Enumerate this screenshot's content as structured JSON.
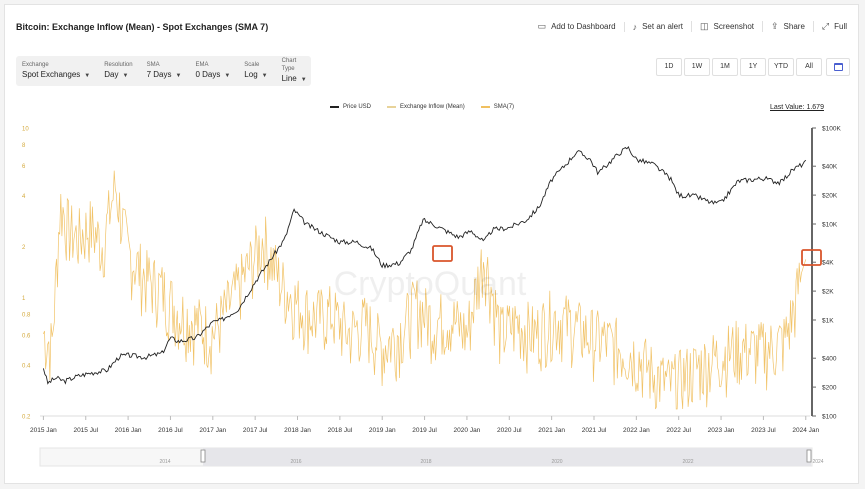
{
  "header": {
    "title": "Bitcoin: Exchange Inflow (Mean) - Spot Exchanges (SMA 7)",
    "actions": [
      {
        "label": "Add to Dashboard",
        "icon": "dashboard-icon"
      },
      {
        "label": "Set an alert",
        "icon": "bell-icon"
      },
      {
        "label": "Screenshot",
        "icon": "camera-icon"
      },
      {
        "label": "Share",
        "icon": "share-icon"
      },
      {
        "label": "Full",
        "icon": "fullscreen-icon"
      }
    ]
  },
  "controls": [
    {
      "label": "Exchange",
      "value": "Spot Exchanges"
    },
    {
      "label": "Resolution",
      "value": "Day"
    },
    {
      "label": "SMA",
      "value": "7 Days"
    },
    {
      "label": "EMA",
      "value": "0 Days"
    },
    {
      "label": "Scale",
      "value": "Log"
    },
    {
      "label": "Chart Type",
      "value": "Line"
    }
  ],
  "ranges": [
    "1D",
    "1W",
    "1M",
    "1Y",
    "YTD",
    "All"
  ],
  "legend": [
    {
      "name": "Price USD",
      "color": "#222222"
    },
    {
      "name": "Exchange Inflow (Mean)",
      "color": "#e8d39a"
    },
    {
      "name": "SMA(7)",
      "color": "#f0c060"
    }
  ],
  "last_value_label": "Last Value: 1.679",
  "navigator": {
    "labels": [
      "2014",
      "2016",
      "2018",
      "2020",
      "2022",
      "2024"
    ]
  },
  "chart_data": {
    "type": "line",
    "scale": "log",
    "x_ticks": [
      "2015 Jan",
      "2015 Jul",
      "2016 Jan",
      "2016 Jul",
      "2017 Jan",
      "2017 Jul",
      "2018 Jan",
      "2018 Jul",
      "2019 Jan",
      "2019 Jul",
      "2020 Jan",
      "2020 Jul",
      "2021 Jan",
      "2021 Jul",
      "2022 Jan",
      "2022 Jul",
      "2023 Jan",
      "2023 Jul",
      "2024 Jan"
    ],
    "x_range": [
      2014.96,
      2024.05
    ],
    "left_axis": {
      "ticks": [
        10,
        8,
        6,
        4,
        2,
        1,
        0.8,
        0.6,
        0.4,
        0.2
      ],
      "range": [
        0.2,
        10
      ]
    },
    "right_axis": {
      "ticks": [
        "$100K",
        "$40K",
        "$20K",
        "$10K",
        "$4K",
        "$2K",
        "$1K",
        "$400",
        "$200",
        "$100"
      ],
      "values": [
        100000,
        40000,
        20000,
        10000,
        4000,
        2000,
        1000,
        400,
        200,
        100
      ],
      "range": [
        100,
        100000
      ]
    },
    "series": [
      {
        "name": "Price USD",
        "axis": "right",
        "color": "#222222",
        "x": [
          2015.0,
          2015.05,
          2015.15,
          2015.25,
          2015.4,
          2015.55,
          2015.75,
          2015.9,
          2016.0,
          2016.2,
          2016.4,
          2016.5,
          2016.6,
          2016.8,
          2017.0,
          2017.1,
          2017.3,
          2017.5,
          2017.7,
          2017.85,
          2017.96,
          2018.1,
          2018.3,
          2018.5,
          2018.7,
          2018.88,
          2019.0,
          2019.2,
          2019.35,
          2019.48,
          2019.6,
          2019.75,
          2019.9,
          2020.05,
          2020.2,
          2020.3,
          2020.5,
          2020.7,
          2020.85,
          2021.0,
          2021.1,
          2021.3,
          2021.45,
          2021.55,
          2021.8,
          2021.9,
          2022.0,
          2022.2,
          2022.4,
          2022.5,
          2022.7,
          2022.9,
          2023.0,
          2023.2,
          2023.5,
          2023.7,
          2023.85,
          2024.0
        ],
        "values": [
          320,
          220,
          250,
          230,
          260,
          280,
          300,
          420,
          430,
          410,
          450,
          650,
          600,
          650,
          950,
          1000,
          1300,
          2500,
          4500,
          7000,
          14000,
          10000,
          8000,
          6500,
          6500,
          5500,
          3700,
          3900,
          5500,
          11000,
          10000,
          8500,
          7300,
          8500,
          6500,
          8700,
          9200,
          11000,
          15000,
          29000,
          36000,
          57000,
          48000,
          34000,
          55000,
          63000,
          47000,
          42000,
          30000,
          20000,
          19500,
          16500,
          16600,
          28000,
          30000,
          27000,
          37000,
          44000
        ]
      },
      {
        "name": "SMA(7)",
        "axis": "left",
        "color": "#f0c060",
        "x": [
          2015.0,
          2015.1,
          2015.2,
          2015.3,
          2015.4,
          2015.55,
          2015.7,
          2015.85,
          2016.0,
          2016.2,
          2016.4,
          2016.6,
          2016.8,
          2017.0,
          2017.2,
          2017.4,
          2017.6,
          2017.8,
          2018.0,
          2018.2,
          2018.4,
          2018.6,
          2018.8,
          2019.0,
          2019.2,
          2019.4,
          2019.6,
          2019.8,
          2020.0,
          2020.2,
          2020.4,
          2020.6,
          2020.8,
          2021.0,
          2021.2,
          2021.4,
          2021.6,
          2021.8,
          2022.0,
          2022.2,
          2022.4,
          2022.6,
          2022.8,
          2023.0,
          2023.2,
          2023.4,
          2023.6,
          2023.75,
          2023.85,
          2023.95,
          2024.0
        ],
        "values": [
          0.6,
          0.5,
          3.5,
          2.5,
          2.2,
          2.6,
          2.0,
          4.5,
          1.8,
          1.3,
          1.1,
          0.8,
          0.7,
          0.6,
          0.9,
          1.4,
          2.2,
          1.2,
          0.9,
          0.75,
          0.8,
          0.6,
          0.7,
          0.5,
          0.6,
          0.9,
          0.7,
          0.75,
          0.6,
          1.8,
          0.6,
          0.7,
          0.6,
          0.75,
          0.7,
          0.6,
          0.55,
          0.5,
          0.45,
          0.35,
          0.3,
          0.35,
          0.4,
          0.45,
          0.5,
          0.48,
          0.5,
          0.55,
          0.8,
          1.4,
          1.679
        ]
      }
    ]
  }
}
